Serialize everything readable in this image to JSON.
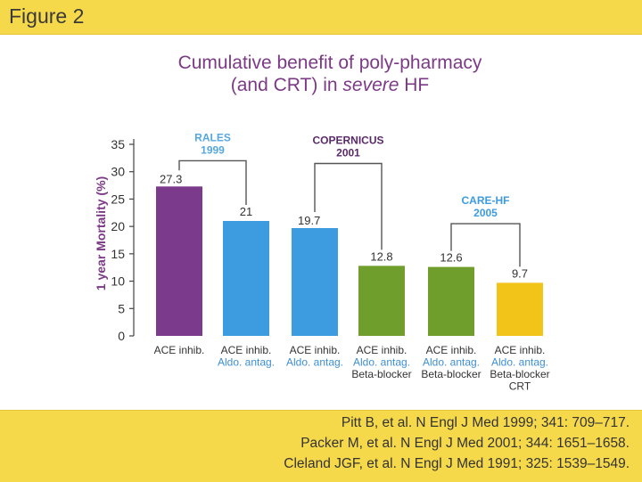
{
  "figure_label": "Figure 2",
  "title": {
    "line1": "Cumulative benefit of poly-pharmacy",
    "line2_prefix": "(and CRT) in ",
    "line2_emphasis": "severe",
    "line2_suffix": " HF"
  },
  "chart_data": {
    "type": "bar",
    "ylabel": "1 year Mortality (%)",
    "ylim": [
      0,
      35
    ],
    "yticks": [
      0,
      5,
      10,
      15,
      20,
      25,
      30,
      35
    ],
    "grid": false,
    "categories": [
      {
        "lines": [
          "ACE inhib."
        ],
        "line_colors": [
          "#333333"
        ]
      },
      {
        "lines": [
          "ACE inhib.",
          "Aldo. antag."
        ],
        "line_colors": [
          "#333333",
          "#3d8fd4"
        ]
      },
      {
        "lines": [
          "ACE inhib.",
          "Aldo. antag."
        ],
        "line_colors": [
          "#333333",
          "#3d8fd4"
        ]
      },
      {
        "lines": [
          "ACE inhib.",
          "Aldo. antag.",
          "Beta-blocker"
        ],
        "line_colors": [
          "#333333",
          "#3d8fd4",
          "#333333"
        ]
      },
      {
        "lines": [
          "ACE inhib.",
          "Aldo. antag.",
          "Beta-blocker"
        ],
        "line_colors": [
          "#333333",
          "#3d8fd4",
          "#333333"
        ]
      },
      {
        "lines": [
          "ACE inhib.",
          "Aldo. antag.",
          "Beta-blocker",
          "CRT"
        ],
        "line_colors": [
          "#333333",
          "#3d8fd4",
          "#333333",
          "#333333"
        ]
      }
    ],
    "values": [
      27.3,
      21,
      19.7,
      12.8,
      12.6,
      9.7
    ],
    "value_labels": [
      "27.3",
      "21",
      "19.7",
      "12.8",
      "12.6",
      "9.7"
    ],
    "bar_colors": [
      "#7b3a8c",
      "#3d9be0",
      "#3d9be0",
      "#6f9e2c",
      "#6f9e2c",
      "#f2c318"
    ],
    "trials": [
      {
        "name": "RALES",
        "year": "1999",
        "from_bar": 0,
        "to_bar": 1,
        "level": 32,
        "color": "#55a7de"
      },
      {
        "name": "COPERNICUS",
        "year": "2001",
        "from_bar": 2,
        "to_bar": 3,
        "level": 31.5,
        "color": "#5a2a6a"
      },
      {
        "name": "CARE-HF",
        "year": "2005",
        "from_bar": 4,
        "to_bar": 5,
        "level": 20.5,
        "color": "#3d9be0"
      }
    ]
  },
  "references": [
    "Pitt B, et al. N Engl J Med 1999; 341: 709–717.",
    "Packer M, et al. N Engl J Med 2001; 344: 1651–1658.",
    "Cleland JGF, et al. N Engl J Med 1991; 325: 1539–1549."
  ],
  "colors": {
    "band": "#f6d94a",
    "title": "#7c3a86",
    "axis": "#444444"
  }
}
